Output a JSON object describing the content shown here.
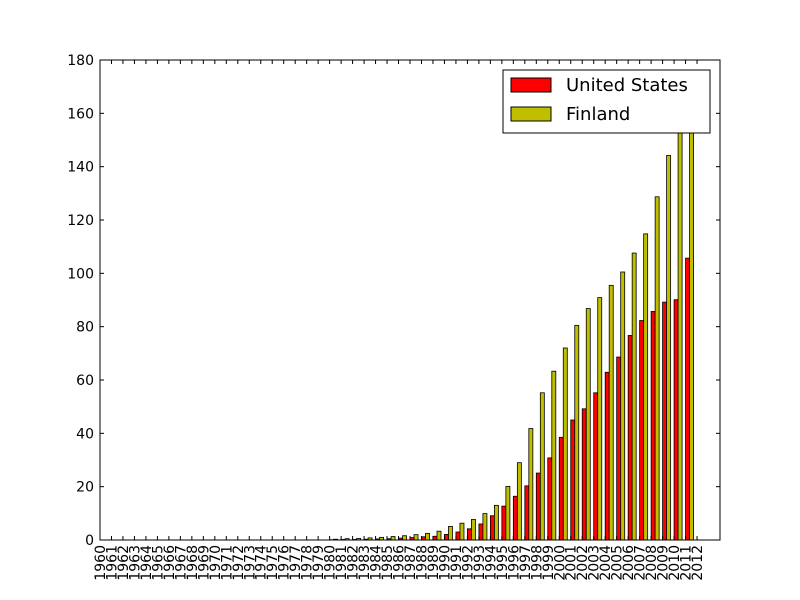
{
  "chart_data": {
    "type": "bar",
    "categories": [
      "1960",
      "1961",
      "1962",
      "1963",
      "1964",
      "1965",
      "1966",
      "1967",
      "1968",
      "1969",
      "1970",
      "1971",
      "1972",
      "1973",
      "1974",
      "1975",
      "1976",
      "1977",
      "1978",
      "1979",
      "1980",
      "1981",
      "1982",
      "1983",
      "1984",
      "1985",
      "1986",
      "1987",
      "1988",
      "1989",
      "1990",
      "1991",
      "1992",
      "1993",
      "1994",
      "1995",
      "1996",
      "1997",
      "1998",
      "1999",
      "2000",
      "2001",
      "2002",
      "2003",
      "2004",
      "2005",
      "2006",
      "2007",
      "2008",
      "2009",
      "2010",
      "2011",
      "2012"
    ],
    "series": [
      {
        "name": "United States",
        "color": "#ff0000",
        "values": [
          0,
          0,
          0,
          0,
          0,
          0,
          0,
          0,
          0,
          0,
          0,
          0,
          0,
          0,
          0,
          0,
          0,
          0,
          0,
          0,
          0.1,
          0.2,
          0.2,
          0.3,
          0.4,
          0.5,
          0.7,
          0.9,
          1.2,
          1.4,
          2.1,
          3.0,
          4.2,
          6.0,
          9.1,
          12.7,
          16.4,
          20.3,
          25.1,
          30.8,
          38.5,
          45.0,
          49.2,
          55.2,
          62.9,
          68.6,
          76.7,
          82.3,
          85.7,
          89.2,
          90.1,
          105.7,
          0
        ]
      },
      {
        "name": "Finland",
        "color": "#bfbf00",
        "values": [
          0,
          0,
          0,
          0,
          0,
          0,
          0,
          0,
          0,
          0,
          0,
          0,
          0,
          0,
          0,
          0,
          0,
          0,
          0,
          0,
          0.3,
          0.5,
          0.6,
          0.8,
          1.0,
          1.3,
          1.6,
          2.0,
          2.5,
          3.3,
          5.1,
          6.3,
          7.7,
          9.9,
          13.0,
          20.1,
          29.0,
          41.8,
          55.2,
          63.3,
          72.0,
          80.5,
          86.8,
          90.9,
          95.5,
          100.5,
          107.6,
          114.8,
          128.7,
          144.2,
          156.4,
          158.0,
          0
        ]
      }
    ],
    "ylim": [
      0,
      180
    ],
    "yticks": [
      0,
      20,
      40,
      60,
      80,
      100,
      120,
      140,
      160,
      180
    ],
    "title": "",
    "xlabel": "",
    "ylabel": "",
    "legend_position": "top-right",
    "grid": false
  }
}
